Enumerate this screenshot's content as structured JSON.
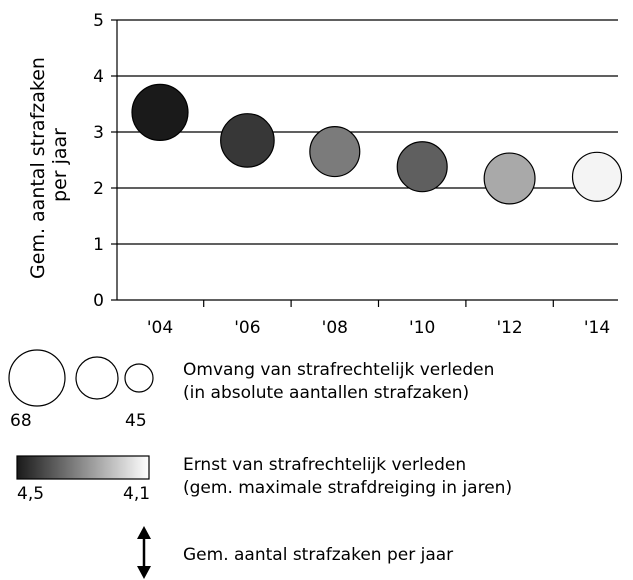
{
  "chart_data": {
    "type": "scatter",
    "ylabel": "Gem. aantal strafzaken per jaar",
    "ylim": [
      0,
      5
    ],
    "yticks": [
      "0",
      "1",
      "2",
      "3",
      "4",
      "5"
    ],
    "categories": [
      "'04",
      "'06",
      "'08",
      "'10",
      "'12",
      "'14"
    ],
    "x": [
      2004,
      2006,
      2008,
      2010,
      2012,
      2014
    ],
    "y": [
      3.35,
      2.85,
      2.65,
      2.38,
      2.17,
      2.2
    ],
    "size": [
      68,
      62,
      54,
      54,
      56,
      52
    ],
    "severity": [
      4.5,
      4.45,
      4.33,
      4.38,
      4.25,
      4.12
    ],
    "grid": "horizontal",
    "size_legend": {
      "title": "Omvang van strafrechtelijk verleden",
      "subtitle": "(in absolute aantallen strafzaken)",
      "min_label": "45",
      "max_label": "68",
      "min": 45,
      "max": 68
    },
    "color_legend": {
      "title": "Ernst van strafrechtelijk verleden",
      "subtitle": "(gem. maximale strafdreiging in jaren)",
      "high_label": "4,5",
      "low_label": "4,1",
      "high": 4.5,
      "low": 4.1,
      "dark_color": "#1a1a1a",
      "light_color": "#ffffff"
    },
    "arrow_legend": {
      "label": "Gem. aantal strafzaken per jaar"
    }
  }
}
